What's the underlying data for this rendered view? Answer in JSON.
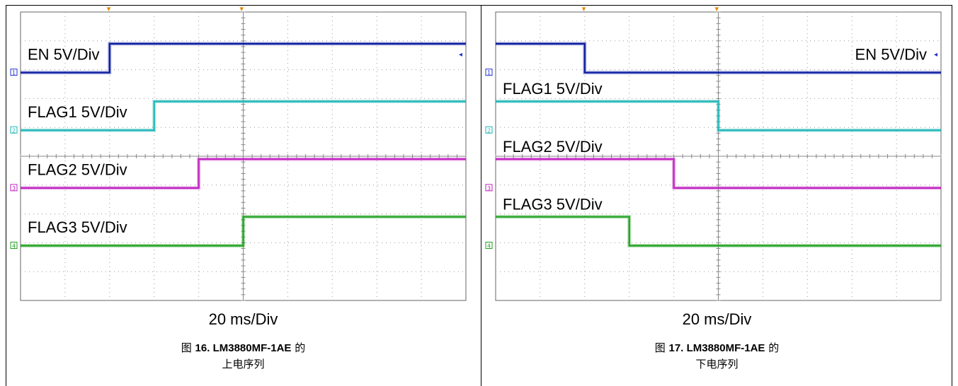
{
  "chart_data": [
    {
      "type": "line",
      "timebase": "20 ms/Div",
      "figure_caption": {
        "prefix": "图",
        "number": "16. LM3880MF-1AE",
        "suffix": "的",
        "line2": "上电序列"
      },
      "series": [
        {
          "name": "EN 5V/Div",
          "channel": "1",
          "color": "#0a1aa0",
          "marker_color": "#2233cc",
          "step_at_div": 2,
          "from_level": "low",
          "to_level": "high",
          "label_pos": "left"
        },
        {
          "name": "FLAG1 5V/Div",
          "channel": "2",
          "color": "#1fb5b5",
          "marker_color": "#1fb5b5",
          "step_at_div": 3,
          "from_level": "low",
          "to_level": "high",
          "label_pos": "left"
        },
        {
          "name": "FLAG2 5V/Div",
          "channel": "3",
          "color": "#c020c0",
          "marker_color": "#c020c0",
          "step_at_div": 4,
          "from_level": "low",
          "to_level": "high",
          "label_pos": "left"
        },
        {
          "name": "FLAG3 5V/Div",
          "channel": "4",
          "color": "#1fa01f",
          "marker_color": "#1fa01f",
          "step_at_div": 5,
          "from_level": "low",
          "to_level": "high",
          "label_pos": "left"
        }
      ]
    },
    {
      "type": "line",
      "timebase": "20 ms/Div",
      "figure_caption": {
        "prefix": "图",
        "number": "17. LM3880MF-1AE",
        "suffix": "的",
        "line2": "下电序列"
      },
      "series": [
        {
          "name": "EN 5V/Div",
          "channel": "1",
          "color": "#0a1aa0",
          "marker_color": "#2233cc",
          "step_at_div": 2,
          "from_level": "high",
          "to_level": "low",
          "label_pos": "right"
        },
        {
          "name": "FLAG1 5V/Div",
          "channel": "2",
          "color": "#1fb5b5",
          "marker_color": "#1fb5b5",
          "step_at_div": 5,
          "from_level": "high",
          "to_level": "low",
          "label_pos": "left"
        },
        {
          "name": "FLAG2 5V/Div",
          "channel": "3",
          "color": "#c020c0",
          "marker_color": "#c020c0",
          "step_at_div": 4,
          "from_level": "high",
          "to_level": "low",
          "label_pos": "left"
        },
        {
          "name": "FLAG3 5V/Div",
          "channel": "4",
          "color": "#1fa01f",
          "marker_color": "#1fa01f",
          "step_at_div": 3,
          "from_level": "high",
          "to_level": "low",
          "label_pos": "left"
        }
      ]
    }
  ]
}
